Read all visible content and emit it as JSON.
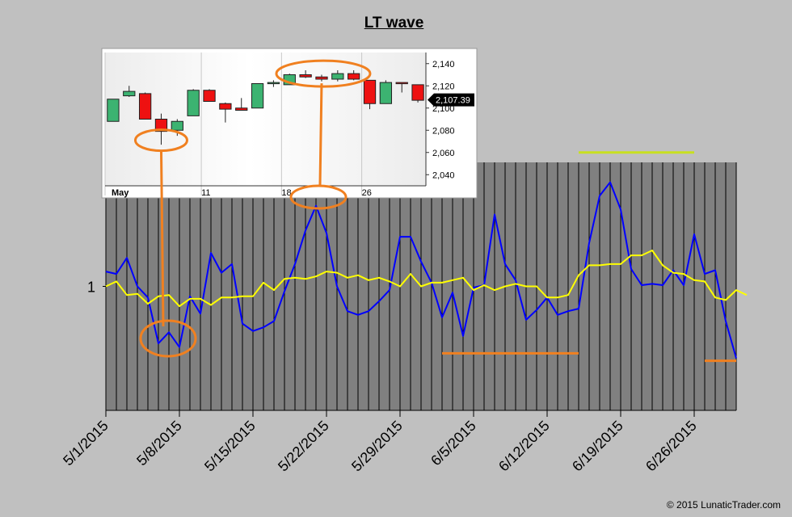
{
  "title": "LT wave",
  "copyright": "© 2015 LunaticTrader.com",
  "colors": {
    "page_bg": "#c0c0c0",
    "plot_bg": "#808080",
    "wave": "#0000ff",
    "smooth": "#ffff00",
    "annotation": "#f08020",
    "highlight_line": "#c8e020",
    "candle_up": "#3cb371",
    "candle_down": "#ee1111"
  },
  "chart_data": [
    {
      "type": "line",
      "title": "LT wave",
      "y_tick_label": "1",
      "x_tick_labels": [
        "5/1/2015",
        "5/8/2015",
        "5/15/2015",
        "5/22/2015",
        "5/29/2015",
        "6/5/2015",
        "6/12/2015",
        "6/19/2015",
        "6/26/2015"
      ],
      "x_start": "2015-05-01",
      "x_end": "2015-06-30",
      "ylim": [
        0,
        2
      ],
      "grid": "vertical",
      "series": [
        {
          "role": "wave",
          "color": "#0000ff",
          "points": [
            [
              "2015-05-01",
              1.12
            ],
            [
              "2015-05-02",
              1.1
            ],
            [
              "2015-05-03",
              1.23
            ],
            [
              "2015-05-04",
              1.0
            ],
            [
              "2015-05-05",
              0.91
            ],
            [
              "2015-05-06",
              0.54
            ],
            [
              "2015-05-07",
              0.63
            ],
            [
              "2015-05-08",
              0.51
            ],
            [
              "2015-05-09",
              0.92
            ],
            [
              "2015-05-10",
              0.78
            ],
            [
              "2015-05-11",
              1.27
            ],
            [
              "2015-05-12",
              1.11
            ],
            [
              "2015-05-13",
              1.18
            ],
            [
              "2015-05-14",
              0.7
            ],
            [
              "2015-05-15",
              0.64
            ],
            [
              "2015-05-16",
              0.67
            ],
            [
              "2015-05-17",
              0.72
            ],
            [
              "2015-05-18",
              0.96
            ],
            [
              "2015-05-19",
              1.18
            ],
            [
              "2015-05-20",
              1.45
            ],
            [
              "2015-05-21",
              1.65
            ],
            [
              "2015-05-22",
              1.43
            ],
            [
              "2015-05-23",
              1.0
            ],
            [
              "2015-05-24",
              0.8
            ],
            [
              "2015-05-25",
              0.77
            ],
            [
              "2015-05-26",
              0.8
            ],
            [
              "2015-05-27",
              0.88
            ],
            [
              "2015-05-28",
              0.97
            ],
            [
              "2015-05-29",
              1.4
            ],
            [
              "2015-05-30",
              1.4
            ],
            [
              "2015-05-31",
              1.2
            ],
            [
              "2015-06-01",
              1.03
            ],
            [
              "2015-06-02",
              0.75
            ],
            [
              "2015-06-03",
              0.95
            ],
            [
              "2015-06-04",
              0.6
            ],
            [
              "2015-06-05",
              0.99
            ],
            [
              "2015-06-06",
              1.01
            ],
            [
              "2015-06-07",
              1.58
            ],
            [
              "2015-06-08",
              1.18
            ],
            [
              "2015-06-09",
              1.05
            ],
            [
              "2015-06-10",
              0.73
            ],
            [
              "2015-06-11",
              0.81
            ],
            [
              "2015-06-12",
              0.91
            ],
            [
              "2015-06-13",
              0.77
            ],
            [
              "2015-06-14",
              0.8
            ],
            [
              "2015-06-15",
              0.82
            ],
            [
              "2015-06-16",
              1.35
            ],
            [
              "2015-06-17",
              1.73
            ],
            [
              "2015-06-18",
              1.84
            ],
            [
              "2015-06-19",
              1.62
            ],
            [
              "2015-06-20",
              1.14
            ],
            [
              "2015-06-21",
              1.01
            ],
            [
              "2015-06-22",
              1.02
            ],
            [
              "2015-06-23",
              1.01
            ],
            [
              "2015-06-24",
              1.13
            ],
            [
              "2015-06-25",
              1.01
            ],
            [
              "2015-06-26",
              1.42
            ],
            [
              "2015-06-27",
              1.1
            ],
            [
              "2015-06-28",
              1.13
            ],
            [
              "2015-06-29",
              0.72
            ],
            [
              "2015-06-30",
              0.42
            ]
          ]
        },
        {
          "role": "smooth",
          "color": "#ffff00",
          "points": [
            [
              "2015-05-01",
              1.0
            ],
            [
              "2015-05-02",
              1.04
            ],
            [
              "2015-05-03",
              0.93
            ],
            [
              "2015-05-04",
              0.94
            ],
            [
              "2015-05-05",
              0.86
            ],
            [
              "2015-05-06",
              0.92
            ],
            [
              "2015-05-07",
              0.93
            ],
            [
              "2015-05-08",
              0.84
            ],
            [
              "2015-05-09",
              0.9
            ],
            [
              "2015-05-10",
              0.9
            ],
            [
              "2015-05-11",
              0.85
            ],
            [
              "2015-05-12",
              0.91
            ],
            [
              "2015-05-13",
              0.91
            ],
            [
              "2015-05-14",
              0.92
            ],
            [
              "2015-05-15",
              0.92
            ],
            [
              "2015-05-16",
              1.03
            ],
            [
              "2015-05-17",
              0.97
            ],
            [
              "2015-05-18",
              1.06
            ],
            [
              "2015-05-19",
              1.07
            ],
            [
              "2015-05-20",
              1.06
            ],
            [
              "2015-05-21",
              1.08
            ],
            [
              "2015-05-22",
              1.12
            ],
            [
              "2015-05-23",
              1.11
            ],
            [
              "2015-05-24",
              1.07
            ],
            [
              "2015-05-25",
              1.09
            ],
            [
              "2015-05-26",
              1.05
            ],
            [
              "2015-05-27",
              1.07
            ],
            [
              "2015-05-28",
              1.04
            ],
            [
              "2015-05-29",
              1.0
            ],
            [
              "2015-05-30",
              1.1
            ],
            [
              "2015-05-31",
              1.0
            ],
            [
              "2015-06-01",
              1.03
            ],
            [
              "2015-06-02",
              1.03
            ],
            [
              "2015-06-03",
              1.05
            ],
            [
              "2015-06-04",
              1.07
            ],
            [
              "2015-06-05",
              0.97
            ],
            [
              "2015-06-06",
              1.01
            ],
            [
              "2015-06-07",
              0.97
            ],
            [
              "2015-06-08",
              1.0
            ],
            [
              "2015-06-09",
              1.02
            ],
            [
              "2015-06-10",
              1.0
            ],
            [
              "2015-06-11",
              1.0
            ],
            [
              "2015-06-12",
              0.91
            ],
            [
              "2015-06-13",
              0.91
            ],
            [
              "2015-06-14",
              0.93
            ],
            [
              "2015-06-15",
              1.09
            ],
            [
              "2015-06-16",
              1.17
            ],
            [
              "2015-06-17",
              1.17
            ],
            [
              "2015-06-18",
              1.18
            ],
            [
              "2015-06-19",
              1.18
            ],
            [
              "2015-06-20",
              1.25
            ],
            [
              "2015-06-21",
              1.25
            ],
            [
              "2015-06-22",
              1.29
            ],
            [
              "2015-06-23",
              1.17
            ],
            [
              "2015-06-24",
              1.11
            ],
            [
              "2015-06-25",
              1.1
            ],
            [
              "2015-06-26",
              1.05
            ],
            [
              "2015-06-27",
              1.04
            ],
            [
              "2015-06-28",
              0.91
            ],
            [
              "2015-06-29",
              0.89
            ],
            [
              "2015-06-30",
              0.97
            ],
            [
              "2015-07-01",
              0.93
            ]
          ]
        }
      ],
      "reference_lines": [
        {
          "color": "#c8e020",
          "x": [
            "2015-06-15",
            "2015-06-26"
          ],
          "y": 2.08
        },
        {
          "color": "#f08020",
          "x": [
            "2015-06-02",
            "2015-06-15"
          ],
          "y": 0.46
        },
        {
          "color": "#f08020",
          "x": [
            "2015-06-27",
            "2015-06-30"
          ],
          "y": 0.4
        }
      ],
      "annotation_ellipses": [
        {
          "x": "2015-05-07",
          "y": 0.58
        },
        {
          "x": "2015-05-21",
          "y": 1.72
        }
      ]
    },
    {
      "type": "candlestick",
      "y_tick_labels": [
        "2,140",
        "2,120",
        "2,100",
        "2,080",
        "2,060",
        "2,040"
      ],
      "ylim": [
        2030,
        2150
      ],
      "x_tick_labels": [
        "May",
        "11",
        "18",
        "26"
      ],
      "price_label": "2,107.39",
      "price_value": 2107.39,
      "candles": [
        {
          "open": 2088,
          "close": 2108,
          "high": 2108,
          "low": 2088
        },
        {
          "open": 2111,
          "close": 2115,
          "high": 2120,
          "low": 2110
        },
        {
          "open": 2113,
          "close": 2090,
          "high": 2114,
          "low": 2090
        },
        {
          "open": 2090,
          "close": 2079,
          "high": 2095,
          "low": 2067
        },
        {
          "open": 2080,
          "close": 2088,
          "high": 2090,
          "low": 2075
        },
        {
          "open": 2093,
          "close": 2116,
          "high": 2117,
          "low": 2093
        },
        {
          "open": 2116,
          "close": 2106,
          "high": 2117,
          "low": 2106
        },
        {
          "open": 2104,
          "close": 2099,
          "high": 2105,
          "low": 2087
        },
        {
          "open": 2100,
          "close": 2098,
          "high": 2109,
          "low": 2098
        },
        {
          "open": 2100,
          "close": 2122,
          "high": 2122,
          "low": 2100
        },
        {
          "open": 2122,
          "close": 2123,
          "high": 2125,
          "low": 2119
        },
        {
          "open": 2121,
          "close": 2130,
          "high": 2131,
          "low": 2121
        },
        {
          "open": 2130,
          "close": 2128,
          "high": 2134,
          "low": 2127
        },
        {
          "open": 2128,
          "close": 2126,
          "high": 2130,
          "low": 2124
        },
        {
          "open": 2126,
          "close": 2131,
          "high": 2134,
          "low": 2124
        },
        {
          "open": 2131,
          "close": 2126,
          "high": 2134,
          "low": 2125
        },
        {
          "open": 2125,
          "close": 2104,
          "high": 2125,
          "low": 2099
        },
        {
          "open": 2104,
          "close": 2123,
          "high": 2125,
          "low": 2104
        },
        {
          "open": 2123,
          "close": 2122,
          "high": 2123,
          "low": 2114
        },
        {
          "open": 2121,
          "close": 2107,
          "high": 2121,
          "low": 2105
        }
      ],
      "annotation_ellipses": [
        {
          "candle": 3,
          "y": 2071
        },
        {
          "candle": 13,
          "y": 2131
        }
      ]
    }
  ]
}
